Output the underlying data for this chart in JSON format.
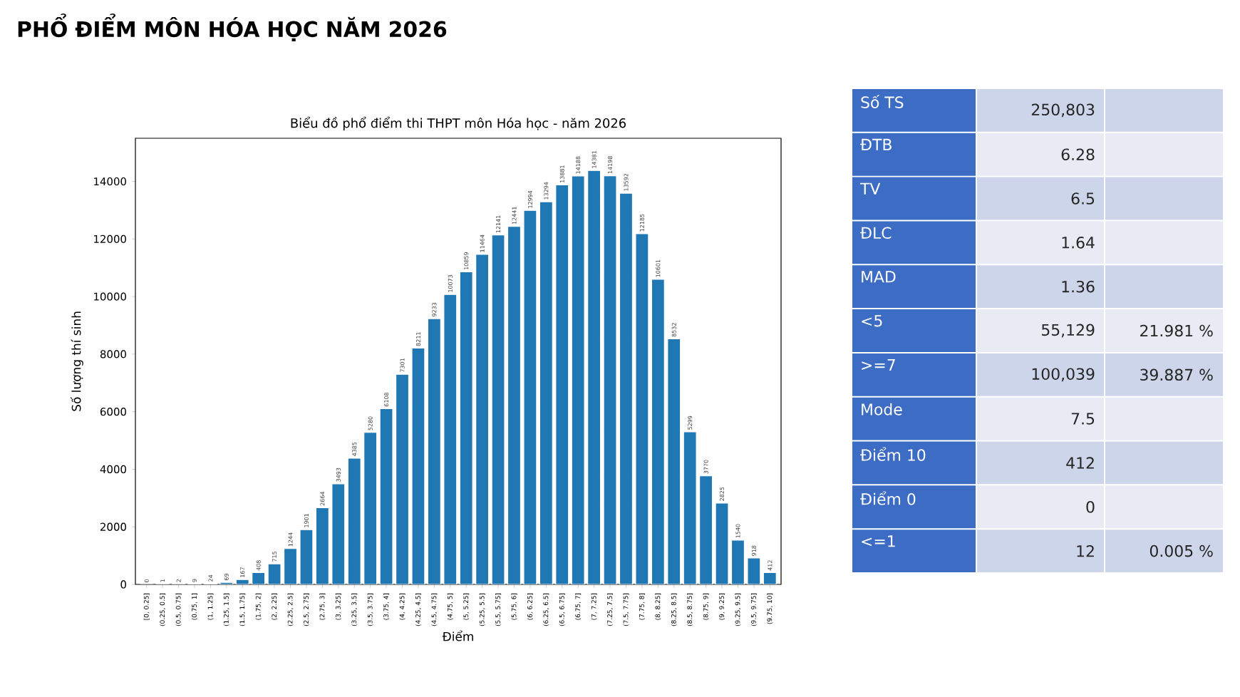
{
  "chart_data": [
    {
      "type": "bar",
      "title": "PHỔ ĐIỂM MÔN HÓA HỌC NĂM 2026",
      "subtitle": "Biểu đồ phổ điểm thi THPT môn Hóa học - năm 2026",
      "xlabel": "Điểm",
      "ylabel": "Số lượng thí sinh",
      "categories": [
        "[0, 0.25]",
        "(0.25, 0.5]",
        "(0.5, 0.75]",
        "(0.75, 1]",
        "(1, 1.25]",
        "(1.25, 1.5]",
        "(1.5, 1.75]",
        "(1.75, 2]",
        "(2, 2.25]",
        "(2.25, 2.5]",
        "(2.5, 2.75]",
        "(2.75, 3]",
        "(3, 3.25]",
        "(3.25, 3.5]",
        "(3.5, 3.75]",
        "(3.75, 4]",
        "(4, 4.25]",
        "(4.25, 4.5]",
        "(4.5, 4.75]",
        "(4.75, 5]",
        "(5, 5.25]",
        "(5.25, 5.5]",
        "(5.5, 5.75]",
        "(5.75, 6]",
        "(6, 6.25]",
        "(6.25, 6.5]",
        "(6.5, 6.75]",
        "(6.75, 7]",
        "(7, 7.25]",
        "(7.25, 7.5]",
        "(7.5, 7.75]",
        "(7.75, 8]",
        "(8, 8.25]",
        "(8.25, 8.5]",
        "(8.5, 8.75]",
        "(8.75, 9]",
        "(9, 9.25]",
        "(9.25, 9.5]",
        "(9.5, 9.75]",
        "(9.75, 10]"
      ],
      "values": [
        0,
        1,
        2,
        9,
        24,
        69,
        167,
        408,
        715,
        1244,
        1901,
        2664,
        3493,
        4385,
        5280,
        6108,
        7301,
        8211,
        9233,
        10073,
        10859,
        11464,
        12141,
        12441,
        12994,
        13294,
        13881,
        14188,
        14381,
        14198,
        13592,
        12185,
        10601,
        8532,
        5299,
        3770,
        2825,
        1540,
        918,
        412
      ],
      "color": "#1f77b4",
      "ylim": [
        0,
        15500
      ],
      "yticks": [
        0,
        2000,
        4000,
        6000,
        8000,
        10000,
        12000,
        14000
      ],
      "data_labels": true
    },
    {
      "type": "other",
      "categories": [
        "Số TS",
        "ĐTB",
        "TV",
        "ĐLC",
        "MAD",
        "<5",
        ">=7",
        "Mode",
        "Điểm 10",
        "Điểm 0",
        "<=1"
      ],
      "annotations": [
        {
          "text": "250,803",
          "y": "Số TS"
        },
        {
          "text": "6.28",
          "y": "ĐTB"
        },
        {
          "text": "6.5",
          "y": "TV"
        },
        {
          "text": "1.64",
          "y": "ĐLC"
        },
        {
          "text": "1.36",
          "y": "MAD"
        },
        {
          "text": "55,129",
          "y": "<5"
        },
        {
          "text": "21.981 %",
          "y": "<5"
        },
        {
          "text": "100,039",
          "y": ">=7"
        },
        {
          "text": "39.887 %",
          "y": ">=7"
        },
        {
          "text": "7.5",
          "y": "Mode"
        },
        {
          "text": "412",
          "y": "Điểm 10"
        },
        {
          "text": "0",
          "y": "Điểm 0"
        },
        {
          "text": "12",
          "y": "<=1"
        },
        {
          "text": "0.005 %",
          "y": "<=1"
        }
      ]
    }
  ]
}
